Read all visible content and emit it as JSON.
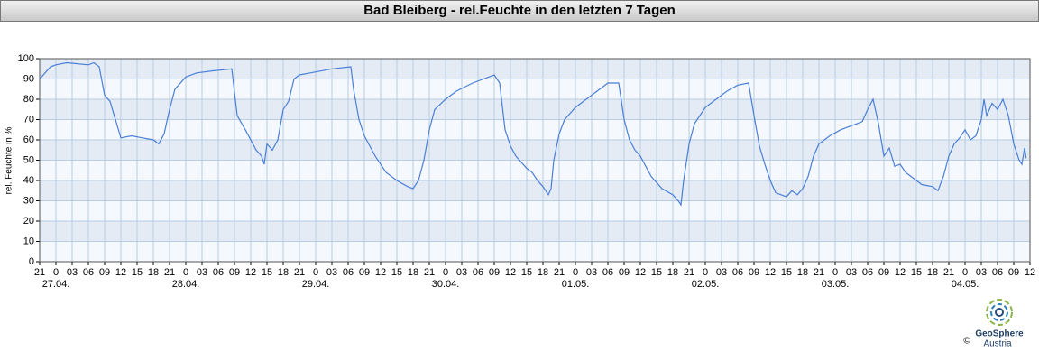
{
  "chart_data": {
    "type": "line",
    "title": "Bad Bleiberg - rel.Feuchte in den letzten 7 Tagen",
    "ylabel": "rel. Feuchte in %",
    "xlim": [
      0,
      183
    ],
    "ylim": [
      0,
      100
    ],
    "yticks": [
      0,
      10,
      20,
      30,
      40,
      50,
      60,
      70,
      80,
      90,
      100
    ],
    "xticks": [
      {
        "value": 0,
        "label": "21"
      },
      {
        "value": 3,
        "label": "0"
      },
      {
        "value": 6,
        "label": "03"
      },
      {
        "value": 9,
        "label": "06"
      },
      {
        "value": 12,
        "label": "09"
      },
      {
        "value": 15,
        "label": "12"
      },
      {
        "value": 18,
        "label": "15"
      },
      {
        "value": 21,
        "label": "18"
      },
      {
        "value": 24,
        "label": "21"
      },
      {
        "value": 27,
        "label": "0"
      },
      {
        "value": 30,
        "label": "03"
      },
      {
        "value": 33,
        "label": "06"
      },
      {
        "value": 36,
        "label": "09"
      },
      {
        "value": 39,
        "label": "12"
      },
      {
        "value": 42,
        "label": "15"
      },
      {
        "value": 45,
        "label": "18"
      },
      {
        "value": 48,
        "label": "21"
      },
      {
        "value": 51,
        "label": "0"
      },
      {
        "value": 54,
        "label": "03"
      },
      {
        "value": 57,
        "label": "06"
      },
      {
        "value": 60,
        "label": "09"
      },
      {
        "value": 63,
        "label": "12"
      },
      {
        "value": 66,
        "label": "15"
      },
      {
        "value": 69,
        "label": "18"
      },
      {
        "value": 72,
        "label": "21"
      },
      {
        "value": 75,
        "label": "0"
      },
      {
        "value": 78,
        "label": "03"
      },
      {
        "value": 81,
        "label": "06"
      },
      {
        "value": 84,
        "label": "09"
      },
      {
        "value": 87,
        "label": "12"
      },
      {
        "value": 90,
        "label": "15"
      },
      {
        "value": 93,
        "label": "18"
      },
      {
        "value": 96,
        "label": "21"
      },
      {
        "value": 99,
        "label": "0"
      },
      {
        "value": 102,
        "label": "03"
      },
      {
        "value": 105,
        "label": "06"
      },
      {
        "value": 108,
        "label": "09"
      },
      {
        "value": 111,
        "label": "12"
      },
      {
        "value": 114,
        "label": "15"
      },
      {
        "value": 117,
        "label": "18"
      },
      {
        "value": 120,
        "label": "21"
      },
      {
        "value": 123,
        "label": "0"
      },
      {
        "value": 126,
        "label": "03"
      },
      {
        "value": 129,
        "label": "06"
      },
      {
        "value": 132,
        "label": "09"
      },
      {
        "value": 135,
        "label": "12"
      },
      {
        "value": 138,
        "label": "15"
      },
      {
        "value": 141,
        "label": "18"
      },
      {
        "value": 144,
        "label": "21"
      },
      {
        "value": 147,
        "label": "0"
      },
      {
        "value": 150,
        "label": "03"
      },
      {
        "value": 153,
        "label": "06"
      },
      {
        "value": 156,
        "label": "09"
      },
      {
        "value": 159,
        "label": "12"
      },
      {
        "value": 162,
        "label": "15"
      },
      {
        "value": 165,
        "label": "18"
      },
      {
        "value": 168,
        "label": "21"
      },
      {
        "value": 171,
        "label": "0"
      },
      {
        "value": 174,
        "label": "03"
      },
      {
        "value": 177,
        "label": "06"
      },
      {
        "value": 180,
        "label": "09"
      },
      {
        "value": 183,
        "label": "12"
      }
    ],
    "date_labels": [
      {
        "value": 3,
        "label": "27.04."
      },
      {
        "value": 27,
        "label": "28.04."
      },
      {
        "value": 51,
        "label": "29.04."
      },
      {
        "value": 75,
        "label": "30.04."
      },
      {
        "value": 99,
        "label": "01.05."
      },
      {
        "value": 123,
        "label": "02.05."
      },
      {
        "value": 147,
        "label": "03.05."
      },
      {
        "value": 171,
        "label": "04.05."
      }
    ],
    "grid": true,
    "x": [
      0,
      1,
      2,
      3,
      5,
      9,
      10,
      11,
      12,
      13,
      14,
      15,
      17,
      19,
      21,
      22,
      23,
      24,
      25,
      27,
      29,
      32,
      35.5,
      36.5,
      38,
      40,
      41,
      41.5,
      42,
      43,
      44,
      45,
      46,
      47,
      48,
      50,
      54,
      57.5,
      58,
      59,
      60,
      62,
      64,
      66,
      68,
      69,
      70,
      71,
      72,
      73,
      75,
      77,
      80,
      83,
      84,
      85,
      86,
      87,
      88,
      90,
      91,
      92,
      93,
      94,
      94.5,
      95,
      96,
      97,
      99,
      101,
      103,
      105,
      107,
      108,
      109,
      110,
      111,
      113,
      115,
      117,
      118,
      118.5,
      119,
      120,
      121,
      123,
      125,
      127,
      129,
      131,
      132,
      133,
      134,
      135,
      136,
      138,
      139,
      140,
      141,
      142,
      143,
      144,
      146,
      148,
      150,
      152,
      153,
      154,
      155,
      156,
      157,
      158,
      159,
      160,
      162,
      163,
      165,
      166,
      167,
      168,
      169,
      170,
      171,
      172,
      173,
      174,
      174.5,
      175,
      176,
      177,
      178,
      179,
      180,
      181,
      181.5,
      182,
      182.3
    ],
    "series": [
      {
        "color": "#4a7fd8",
        "values": [
          90,
          93,
          96,
          97,
          98,
          97,
          98,
          96,
          82,
          79,
          70,
          61,
          62,
          61,
          60,
          58,
          63,
          75,
          85,
          91,
          93,
          94,
          95,
          72,
          65,
          55,
          52,
          48,
          58,
          55,
          60,
          75,
          79,
          90,
          92,
          93,
          95,
          96,
          85,
          70,
          62,
          52,
          44,
          40,
          37,
          36,
          40,
          50,
          65,
          75,
          80,
          84,
          88,
          91,
          92,
          88,
          65,
          57,
          52,
          46,
          44,
          40,
          37,
          33,
          36,
          50,
          63,
          70,
          76,
          80,
          84,
          88,
          88,
          70,
          60,
          55,
          52,
          42,
          36,
          33,
          30,
          28,
          40,
          58,
          68,
          76,
          80,
          84,
          87,
          88,
          72,
          57,
          48,
          40,
          34,
          32,
          35,
          33,
          36,
          42,
          52,
          58,
          62,
          65,
          67,
          69,
          75,
          80,
          68,
          52,
          56,
          47,
          48,
          44,
          40,
          38,
          37,
          35,
          42,
          52,
          58,
          61,
          65,
          60,
          62,
          70,
          80,
          72,
          78,
          75,
          80,
          72,
          58,
          50,
          48,
          56,
          51
        ]
      }
    ],
    "logo": {
      "name": "GeoSphere",
      "sub": "Austria",
      "copyright": "©"
    }
  }
}
